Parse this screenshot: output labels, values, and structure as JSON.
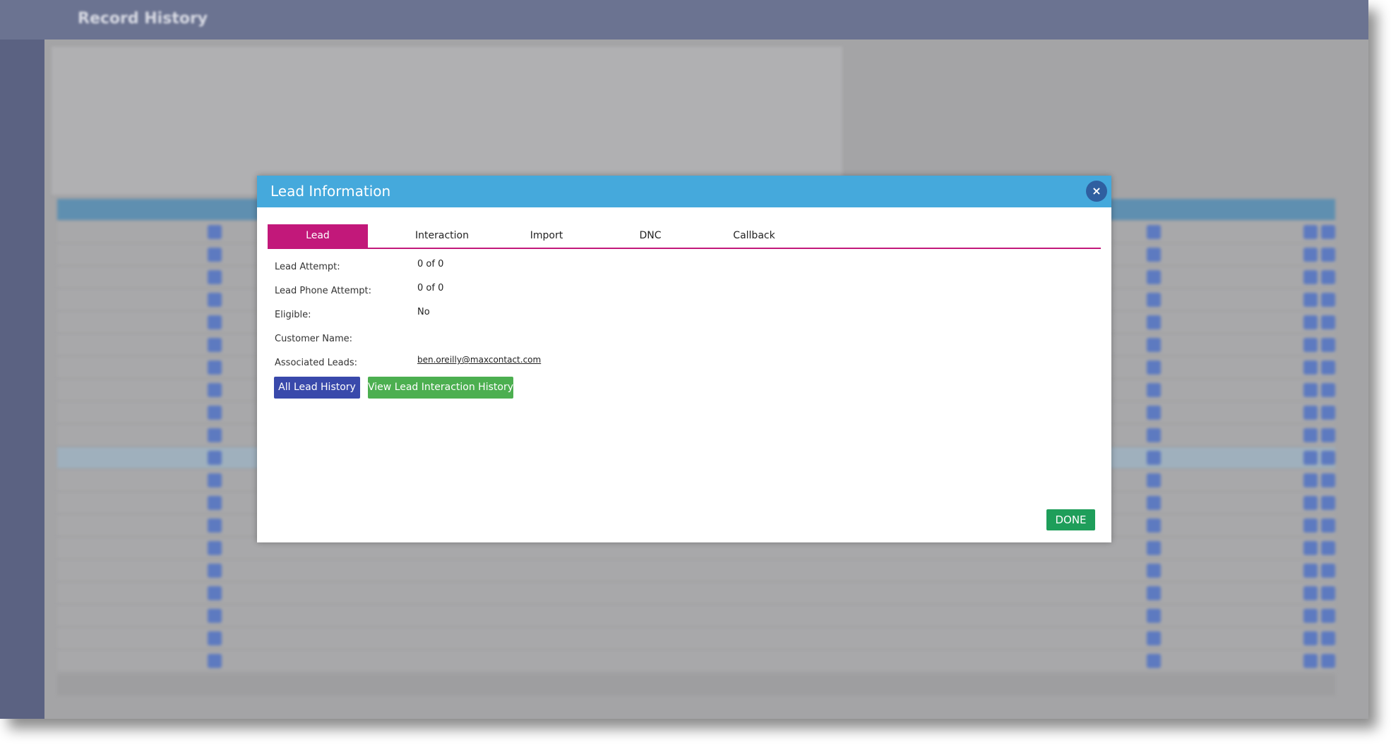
{
  "header": {
    "title": "Record History"
  },
  "modal": {
    "title": "Lead Information",
    "tabs": [
      "Lead",
      "Interaction",
      "Import",
      "DNC",
      "Callback"
    ],
    "fields": [
      {
        "label": "Lead Attempt:",
        "value": "0 of 0"
      },
      {
        "label": "Lead Phone Attempt:",
        "value": "0 of 0"
      },
      {
        "label": "Eligible:",
        "value": "No"
      },
      {
        "label": "Customer Name:",
        "value": ""
      },
      {
        "label": "Associated Leads:",
        "value": "ben.oreilly@maxcontact.com"
      }
    ],
    "buttons": [
      "All Lead History",
      "View Lead Interaction History"
    ],
    "done": "DONE"
  }
}
